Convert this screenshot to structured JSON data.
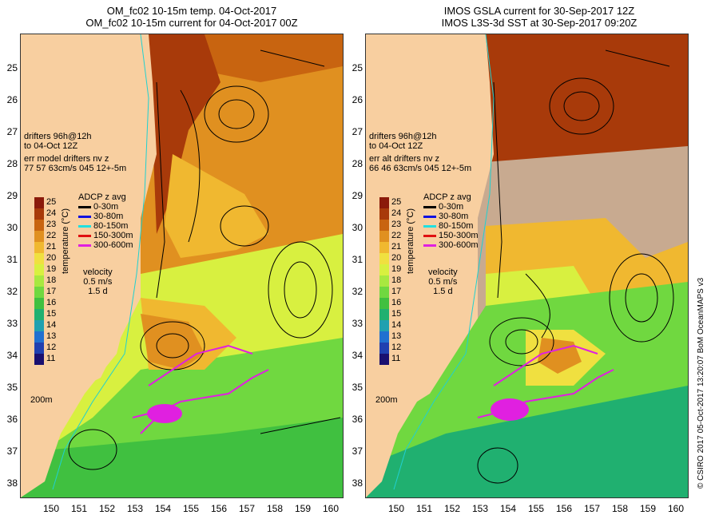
{
  "left": {
    "title_line1": "OM_fc02 10-15m temp. 04-Oct-2017",
    "title_line2": "OM_fc02 10-15m current for 04-Oct-2017 00Z",
    "drifters_line1": "drifters 96h@12h",
    "drifters_line2": "to 04-Oct 12Z",
    "err_line1": "err model drifters nv z",
    "err_line2": "77 57 63cm/s 045 12+-5m"
  },
  "right": {
    "title_line1": "IMOS GSLA current for 30-Sep-2017 12Z",
    "title_line2": "IMOS L3S-3d SST at 30-Sep-2017 09:20Z",
    "drifters_line1": "drifters 96h@12h",
    "drifters_line2": "to 04-Oct 12Z",
    "err_line1": "err alt drifters nv z",
    "err_line2": "66 46 63cm/s 045 12+-5m"
  },
  "legend": {
    "colorbar_title": "temperature (°C)",
    "colorbar_labels": [
      "25",
      "24",
      "23",
      "22",
      "21",
      "20",
      "19",
      "18",
      "17",
      "16",
      "15",
      "14",
      "13",
      "12",
      "11"
    ],
    "colorbar_colors": [
      "#8b1a0a",
      "#a83a0a",
      "#c86410",
      "#e09020",
      "#f0b830",
      "#f0e040",
      "#d8f040",
      "#a8e840",
      "#70d840",
      "#40c040",
      "#20b070",
      "#20a0b0",
      "#2070d0",
      "#2040b0",
      "#1a1070"
    ],
    "adcp_title": "ADCP z avg",
    "adcp_items": [
      {
        "label": "0-30m",
        "color": "#000000"
      },
      {
        "label": "30-80m",
        "color": "#1010e0"
      },
      {
        "label": "80-150m",
        "color": "#20e0e0"
      },
      {
        "label": "150-300m",
        "color": "#e01010"
      },
      {
        "label": "300-600m",
        "color": "#e020e0"
      }
    ],
    "velocity_line1": "velocity",
    "velocity_line2": "0.5 m/s",
    "velocity_line3": "1.5 d",
    "depth_label": "200m"
  },
  "axes": {
    "y_ticks": [
      "25",
      "26",
      "27",
      "28",
      "29",
      "30",
      "31",
      "32",
      "33",
      "34",
      "35",
      "36",
      "37",
      "38"
    ],
    "x_ticks": [
      "150",
      "151",
      "152",
      "153",
      "154",
      "155",
      "156",
      "157",
      "158",
      "159",
      "160"
    ]
  },
  "credit": "© CSIRO 2017   05-Oct-2017 13:20:07 BoM OceanMAPS v3"
}
